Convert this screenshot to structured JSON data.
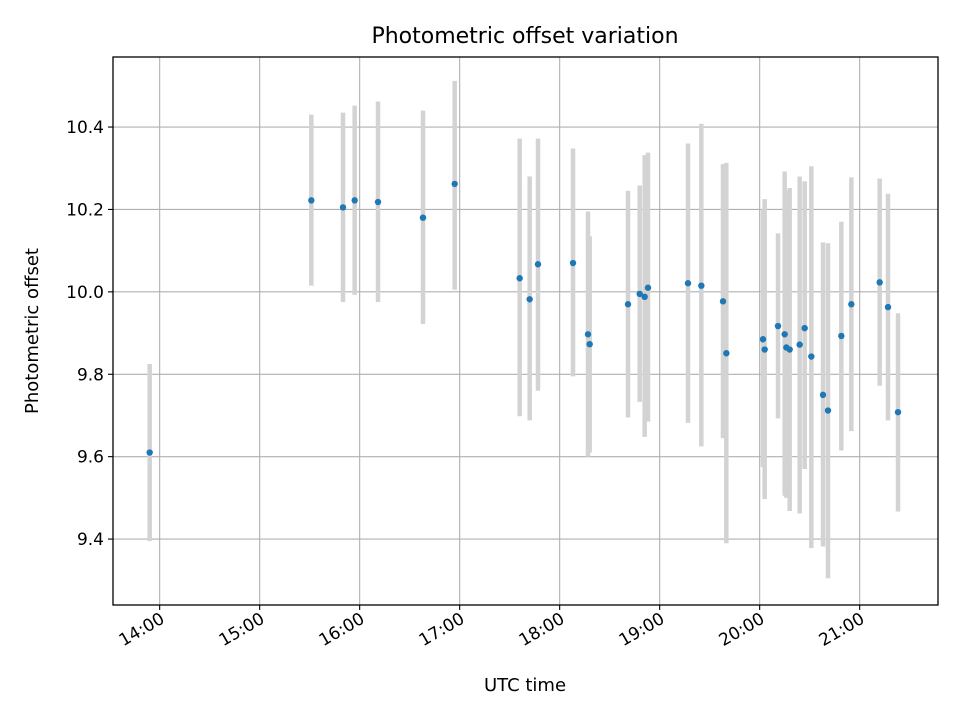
{
  "chart_data": {
    "type": "scatter",
    "title": "Photometric offset variation",
    "xlabel": "UTC time",
    "ylabel": "Photometric offset",
    "x_axis_type": "time",
    "x_range": [
      "13:32",
      "21:47"
    ],
    "ylim": [
      9.24,
      10.57
    ],
    "grid": true,
    "x_ticks": [
      "14:00",
      "15:00",
      "16:00",
      "17:00",
      "18:00",
      "19:00",
      "20:00",
      "21:00"
    ],
    "y_ticks": [
      "9.4",
      "9.6",
      "9.8",
      "10.0",
      "10.2",
      "10.4"
    ],
    "point_color": "#1f77b4",
    "errorbar_color": "#d3d3d3",
    "points": [
      {
        "x": "13:54",
        "y": 9.61,
        "ylow": 9.395,
        "yhigh": 9.825
      },
      {
        "x": "15:31",
        "y": 10.222,
        "ylow": 10.015,
        "yhigh": 10.43
      },
      {
        "x": "15:50",
        "y": 10.205,
        "ylow": 9.975,
        "yhigh": 10.435
      },
      {
        "x": "15:57",
        "y": 10.222,
        "ylow": 9.993,
        "yhigh": 10.452
      },
      {
        "x": "16:11",
        "y": 10.218,
        "ylow": 9.975,
        "yhigh": 10.462
      },
      {
        "x": "16:38",
        "y": 10.18,
        "ylow": 9.922,
        "yhigh": 10.44
      },
      {
        "x": "16:57",
        "y": 10.262,
        "ylow": 10.005,
        "yhigh": 10.512
      },
      {
        "x": "17:36",
        "y": 10.033,
        "ylow": 9.698,
        "yhigh": 10.372
      },
      {
        "x": "17:42",
        "y": 9.982,
        "ylow": 9.688,
        "yhigh": 10.28
      },
      {
        "x": "17:47",
        "y": 10.067,
        "ylow": 9.76,
        "yhigh": 10.372
      },
      {
        "x": "18:08",
        "y": 10.07,
        "ylow": 9.795,
        "yhigh": 10.348
      },
      {
        "x": "18:17",
        "y": 9.897,
        "ylow": 9.6,
        "yhigh": 10.195
      },
      {
        "x": "18:18",
        "y": 9.873,
        "ylow": 9.61,
        "yhigh": 10.135
      },
      {
        "x": "18:41",
        "y": 9.97,
        "ylow": 9.695,
        "yhigh": 10.245
      },
      {
        "x": "18:48",
        "y": 9.995,
        "ylow": 9.733,
        "yhigh": 10.258
      },
      {
        "x": "18:51",
        "y": 9.988,
        "ylow": 9.648,
        "yhigh": 10.332
      },
      {
        "x": "18:53",
        "y": 10.01,
        "ylow": 9.685,
        "yhigh": 10.338
      },
      {
        "x": "19:17",
        "y": 10.021,
        "ylow": 9.682,
        "yhigh": 10.36
      },
      {
        "x": "19:25",
        "y": 10.015,
        "ylow": 9.625,
        "yhigh": 10.408
      },
      {
        "x": "19:38",
        "y": 9.977,
        "ylow": 9.645,
        "yhigh": 10.31
      },
      {
        "x": "19:40",
        "y": 9.851,
        "ylow": 9.39,
        "yhigh": 10.313
      },
      {
        "x": "20:02",
        "y": 9.885,
        "ylow": 9.575,
        "yhigh": 10.2
      },
      {
        "x": "20:03",
        "y": 9.86,
        "ylow": 9.497,
        "yhigh": 10.225
      },
      {
        "x": "20:11",
        "y": 9.917,
        "ylow": 9.693,
        "yhigh": 10.142
      },
      {
        "x": "20:15",
        "y": 9.897,
        "ylow": 9.505,
        "yhigh": 10.292
      },
      {
        "x": "20:16",
        "y": 9.865,
        "ylow": 9.5,
        "yhigh": 10.245
      },
      {
        "x": "20:18",
        "y": 9.86,
        "ylow": 9.468,
        "yhigh": 10.252
      },
      {
        "x": "20:24",
        "y": 9.872,
        "ylow": 9.462,
        "yhigh": 10.28
      },
      {
        "x": "20:27",
        "y": 9.912,
        "ylow": 9.57,
        "yhigh": 10.268
      },
      {
        "x": "20:31",
        "y": 9.843,
        "ylow": 9.378,
        "yhigh": 10.305
      },
      {
        "x": "20:38",
        "y": 9.75,
        "ylow": 9.382,
        "yhigh": 10.12
      },
      {
        "x": "20:41",
        "y": 9.712,
        "ylow": 9.305,
        "yhigh": 10.118
      },
      {
        "x": "20:49",
        "y": 9.893,
        "ylow": 9.615,
        "yhigh": 10.17
      },
      {
        "x": "20:55",
        "y": 9.97,
        "ylow": 9.662,
        "yhigh": 10.278
      },
      {
        "x": "21:12",
        "y": 10.023,
        "ylow": 9.772,
        "yhigh": 10.275
      },
      {
        "x": "21:17",
        "y": 9.963,
        "ylow": 9.688,
        "yhigh": 10.238
      },
      {
        "x": "21:23",
        "y": 9.708,
        "ylow": 9.467,
        "yhigh": 9.948
      }
    ]
  }
}
